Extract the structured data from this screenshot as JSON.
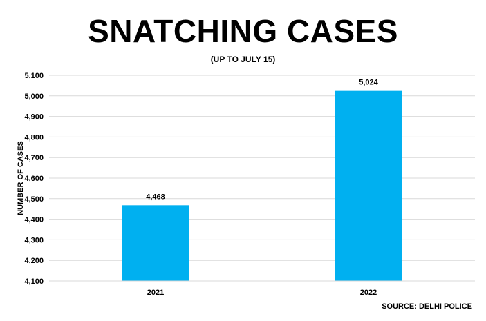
{
  "chart_data": {
    "type": "bar",
    "title": "SNATCHING CASES",
    "subtitle": "(UP TO JULY 15)",
    "xlabel": "",
    "ylabel": "NUMBER OF CASES",
    "categories": [
      "2021",
      "2022"
    ],
    "values": [
      4468,
      5024
    ],
    "data_labels": [
      "4,468",
      "5,024"
    ],
    "ylim": [
      4100,
      5100
    ],
    "yticks": [
      4100,
      4200,
      4300,
      4400,
      4500,
      4600,
      4700,
      4800,
      4900,
      5000,
      5100
    ],
    "ytick_labels": [
      "4,100",
      "4,200",
      "4,300",
      "4,400",
      "4,500",
      "4,600",
      "4,700",
      "4,800",
      "4,900",
      "5,000",
      "5,100"
    ],
    "grid": true,
    "legend": "none",
    "bar_color": "#00B0F0",
    "grid_color": "#D9D9D9",
    "source": "SOURCE: DELHI POLICE"
  }
}
